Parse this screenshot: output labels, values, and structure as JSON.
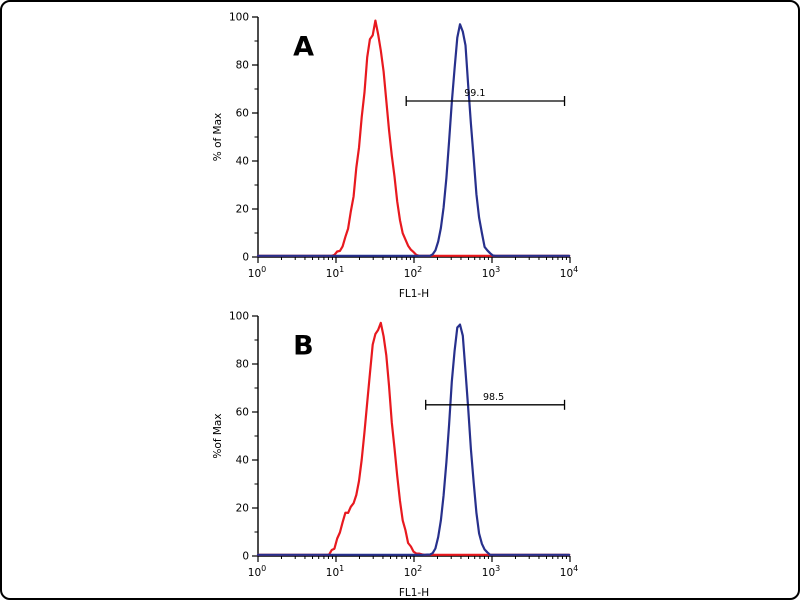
{
  "figure": {
    "background": "#ffffff",
    "kind": "flow-cytometry-histogram-figure"
  },
  "chart_data": {
    "type": "line",
    "chart_kind": "flow cytometry histogram overlay",
    "x_scale": "log10",
    "xlim_log": [
      0,
      4
    ],
    "ylim": [
      0,
      100
    ],
    "yticks": [
      0,
      20,
      40,
      60,
      80,
      100
    ],
    "y_minor_start": 10,
    "y_minor_step": 20,
    "xtick_exponents": [
      0,
      1,
      2,
      3,
      4
    ],
    "xlabel": "FL1-H",
    "axis_color": "#000000",
    "panels": [
      {
        "id": "A",
        "label": "A",
        "ylabel": "% of Max",
        "xlabel": "FL1-H",
        "gate": {
          "label": "99.1",
          "y_percent": 65,
          "x1_log": 1.9,
          "x2_log": 3.93,
          "label_x_log": 2.78
        },
        "series": [
          {
            "name": "control-red",
            "color": "#e8191f",
            "jitter": 4,
            "phase": 3.1,
            "components": [
              {
                "center_log": 1.5,
                "sigma_log": 0.17,
                "height": 96
              }
            ]
          },
          {
            "name": "stained-blue",
            "color": "#27308c",
            "jitter": 3,
            "phase": 7.4,
            "components": [
              {
                "center_log": 2.6,
                "sigma_log": 0.125,
                "height": 97
              }
            ]
          }
        ]
      },
      {
        "id": "B",
        "label": "B",
        "ylabel": "%of Max",
        "xlabel": "FL1-H",
        "gate": {
          "label": "98.5",
          "y_percent": 63,
          "x1_log": 2.15,
          "x2_log": 3.93,
          "label_x_log": 3.02
        },
        "series": [
          {
            "name": "control-red",
            "color": "#e8191f",
            "jitter": 4,
            "phase": 11.2,
            "components": [
              {
                "center_log": 1.55,
                "sigma_log": 0.16,
                "height": 97
              },
              {
                "center_log": 1.13,
                "sigma_log": 0.09,
                "height": 15
              }
            ]
          },
          {
            "name": "stained-blue",
            "color": "#27308c",
            "jitter": 3,
            "phase": 5.6,
            "components": [
              {
                "center_log": 2.58,
                "sigma_log": 0.12,
                "height": 98
              }
            ]
          }
        ]
      }
    ]
  }
}
